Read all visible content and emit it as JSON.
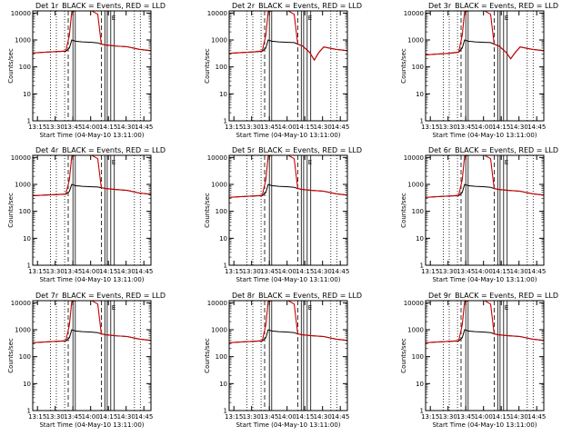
{
  "common": {
    "title_suffix": "BLACK = Events, RED = LLD",
    "xlabel": "Start Time (04-May-10 13:11:00)",
    "ylabel": "Counts/sec",
    "xticks": [
      "13:15",
      "13:30",
      "13:45",
      "14:00",
      "14:15",
      "14:30",
      "14:45"
    ],
    "xtick_minutes": [
      4,
      19,
      34,
      49,
      64,
      79,
      94
    ],
    "xlim_minutes": [
      0,
      100
    ],
    "yticks": [
      "1",
      "10",
      "100",
      "1000",
      "10000"
    ],
    "ytick_values": [
      1,
      10,
      100,
      1000,
      10000
    ],
    "ylim": [
      1,
      12000
    ],
    "yscale": "log",
    "colors": {
      "events": "#000000",
      "lld": "#cc0000"
    },
    "dotted_lines_minutes": [
      15,
      20,
      27,
      86,
      91
    ],
    "dashed_lines_minutes": [
      30,
      58
    ],
    "solid_lines_minutes": [
      34,
      36,
      61,
      63,
      66,
      69
    ],
    "bracket_text": "E"
  },
  "chart_data": [
    {
      "type": "line",
      "title": "Det 1r",
      "x": [
        0,
        10,
        20,
        28,
        31,
        33,
        36,
        42,
        50,
        55,
        58,
        62,
        70,
        80,
        90,
        100
      ],
      "series": [
        {
          "name": "Events",
          "values": [
            330,
            350,
            370,
            380,
            500,
            1000,
            900,
            850,
            820,
            780,
            700,
            650,
            600,
            560,
            450,
            400
          ]
        },
        {
          "name": "LLD",
          "values": [
            330,
            350,
            370,
            390,
            1500,
            11000,
            12000,
            12000,
            12000,
            9000,
            700,
            650,
            600,
            560,
            450,
            400
          ]
        }
      ]
    },
    {
      "type": "line",
      "title": "Det 2r",
      "x": [
        0,
        10,
        20,
        28,
        31,
        33,
        36,
        42,
        50,
        55,
        58,
        62,
        68,
        72,
        76,
        80,
        90,
        100
      ],
      "series": [
        {
          "name": "Events",
          "values": [
            320,
            340,
            360,
            380,
            500,
            1000,
            900,
            850,
            820,
            800,
            700,
            600,
            350,
            180,
            350,
            550,
            450,
            400
          ]
        },
        {
          "name": "LLD",
          "values": [
            320,
            340,
            360,
            390,
            1500,
            11000,
            12000,
            12000,
            12000,
            9000,
            700,
            600,
            350,
            180,
            350,
            550,
            450,
            400
          ]
        }
      ]
    },
    {
      "type": "line",
      "title": "Det 3r",
      "x": [
        0,
        10,
        20,
        28,
        31,
        33,
        36,
        42,
        50,
        55,
        58,
        62,
        68,
        72,
        76,
        80,
        90,
        100
      ],
      "series": [
        {
          "name": "Events",
          "values": [
            280,
            300,
            320,
            350,
            500,
            1000,
            900,
            850,
            820,
            800,
            700,
            600,
            350,
            200,
            350,
            550,
            450,
            400
          ]
        },
        {
          "name": "LLD",
          "values": [
            280,
            300,
            320,
            360,
            1500,
            11000,
            12000,
            12000,
            12000,
            9000,
            700,
            600,
            350,
            200,
            350,
            550,
            450,
            400
          ]
        }
      ]
    },
    {
      "type": "line",
      "title": "Det 4r",
      "x": [
        0,
        10,
        20,
        28,
        31,
        33,
        36,
        42,
        50,
        55,
        58,
        62,
        70,
        80,
        90,
        100
      ],
      "series": [
        {
          "name": "Events",
          "values": [
            380,
            400,
            420,
            430,
            550,
            1000,
            900,
            850,
            820,
            800,
            750,
            700,
            650,
            600,
            480,
            430
          ]
        },
        {
          "name": "LLD",
          "values": [
            380,
            400,
            420,
            440,
            1500,
            11000,
            12000,
            12000,
            12000,
            9000,
            750,
            700,
            650,
            600,
            480,
            430
          ]
        }
      ]
    },
    {
      "type": "line",
      "title": "Det 5r",
      "x": [
        0,
        10,
        20,
        28,
        31,
        33,
        36,
        42,
        50,
        55,
        58,
        62,
        70,
        80,
        90,
        100
      ],
      "series": [
        {
          "name": "Events",
          "values": [
            330,
            350,
            370,
            380,
            500,
            1000,
            900,
            850,
            820,
            780,
            700,
            650,
            600,
            560,
            450,
            400
          ]
        },
        {
          "name": "LLD",
          "values": [
            330,
            350,
            370,
            390,
            1500,
            11000,
            12000,
            12000,
            12000,
            9000,
            700,
            650,
            600,
            560,
            450,
            400
          ]
        }
      ]
    },
    {
      "type": "line",
      "title": "Det 6r",
      "x": [
        0,
        10,
        20,
        28,
        31,
        33,
        36,
        42,
        50,
        55,
        58,
        62,
        70,
        80,
        90,
        100
      ],
      "series": [
        {
          "name": "Events",
          "values": [
            330,
            350,
            370,
            380,
            500,
            1000,
            900,
            850,
            820,
            780,
            700,
            650,
            600,
            560,
            450,
            400
          ]
        },
        {
          "name": "LLD",
          "values": [
            330,
            350,
            370,
            390,
            1500,
            11000,
            12000,
            12000,
            12000,
            9000,
            700,
            650,
            600,
            560,
            450,
            400
          ]
        }
      ]
    },
    {
      "type": "line",
      "title": "Det 7r",
      "x": [
        0,
        10,
        20,
        28,
        31,
        33,
        36,
        42,
        50,
        55,
        58,
        62,
        70,
        80,
        90,
        100
      ],
      "series": [
        {
          "name": "Events",
          "values": [
            330,
            350,
            370,
            380,
            500,
            1000,
            900,
            850,
            820,
            780,
            700,
            650,
            600,
            560,
            450,
            400
          ]
        },
        {
          "name": "LLD",
          "values": [
            330,
            350,
            370,
            390,
            1500,
            11000,
            12000,
            12000,
            12000,
            9000,
            700,
            650,
            600,
            560,
            450,
            400
          ]
        }
      ]
    },
    {
      "type": "line",
      "title": "Det 8r",
      "x": [
        0,
        10,
        20,
        28,
        31,
        33,
        36,
        42,
        50,
        55,
        58,
        62,
        70,
        80,
        90,
        100
      ],
      "series": [
        {
          "name": "Events",
          "values": [
            330,
            350,
            370,
            380,
            500,
            1000,
            900,
            850,
            820,
            780,
            700,
            650,
            600,
            560,
            450,
            400
          ]
        },
        {
          "name": "LLD",
          "values": [
            330,
            350,
            370,
            390,
            1500,
            11000,
            12000,
            12000,
            12000,
            9000,
            700,
            650,
            600,
            560,
            450,
            400
          ]
        }
      ]
    },
    {
      "type": "line",
      "title": "Det 9r",
      "x": [
        0,
        10,
        20,
        28,
        31,
        33,
        36,
        42,
        50,
        55,
        58,
        62,
        70,
        80,
        90,
        100
      ],
      "series": [
        {
          "name": "Events",
          "values": [
            330,
            350,
            370,
            380,
            500,
            1000,
            900,
            850,
            820,
            780,
            700,
            650,
            600,
            560,
            450,
            400
          ]
        },
        {
          "name": "LLD",
          "values": [
            330,
            350,
            370,
            390,
            1500,
            11000,
            12000,
            12000,
            12000,
            9000,
            700,
            650,
            600,
            560,
            450,
            400
          ]
        }
      ]
    }
  ]
}
